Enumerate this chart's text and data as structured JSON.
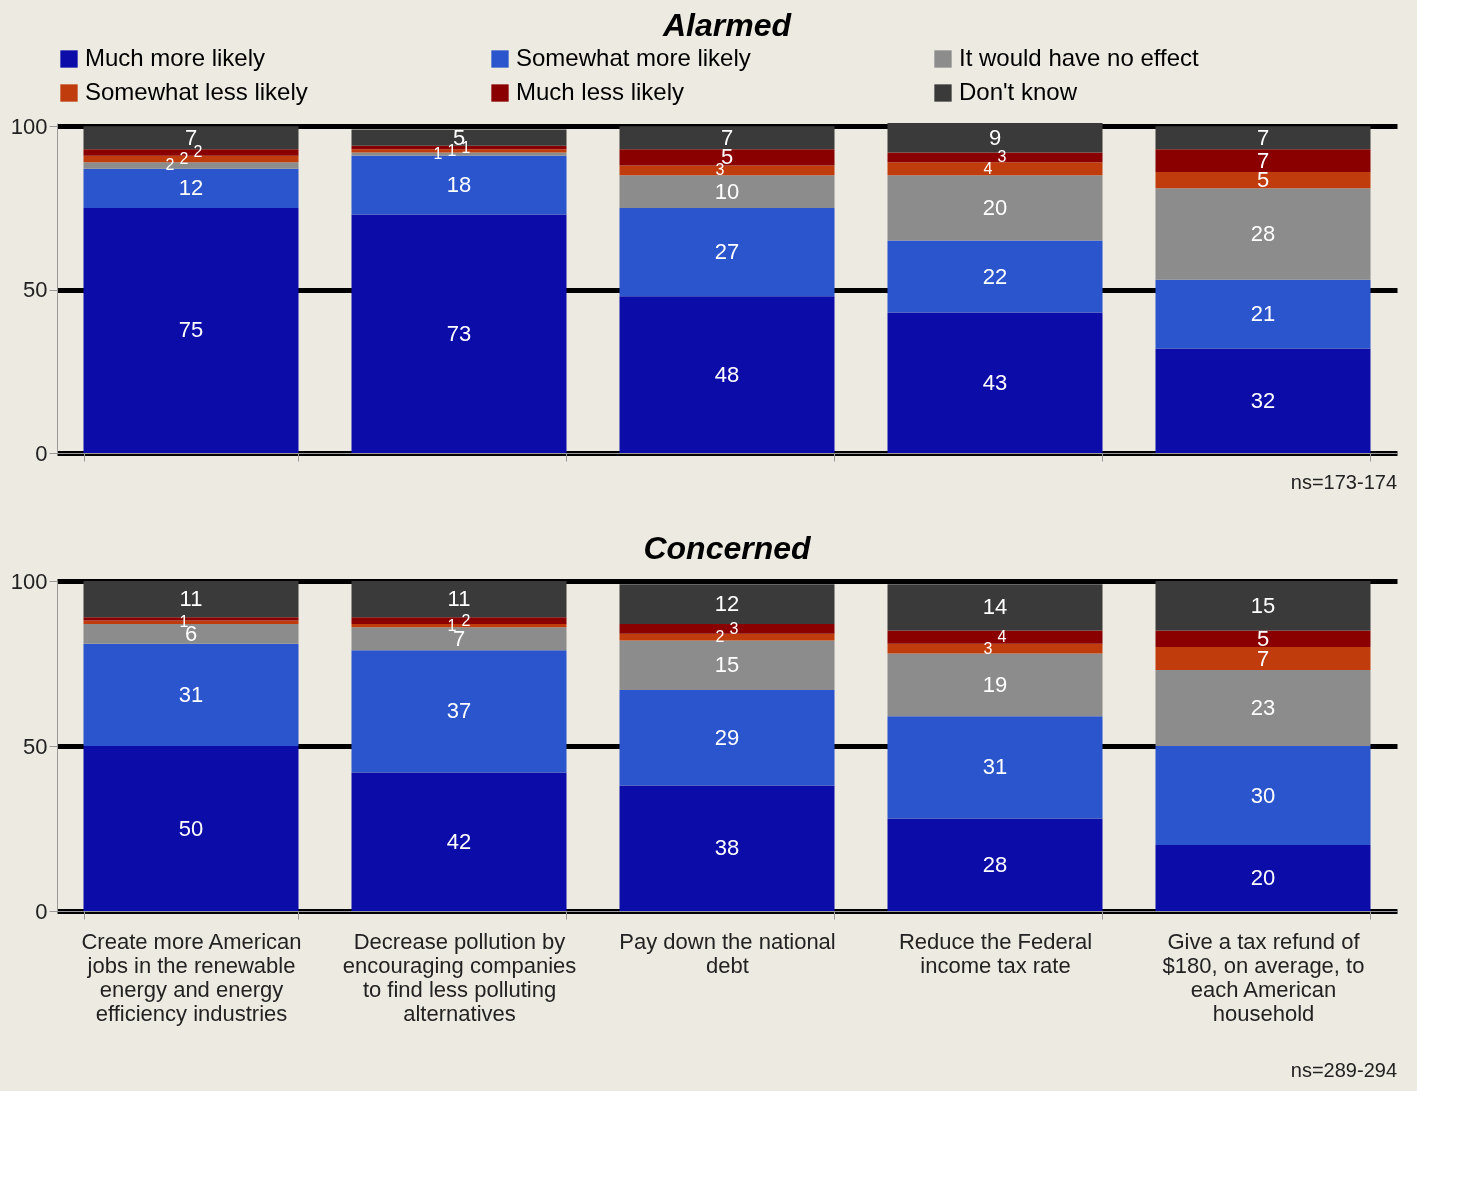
{
  "chart_data": [
    {
      "type": "bar",
      "title": "Alarmed",
      "stacked": true,
      "data_labels": true,
      "legend": "top",
      "grid": "y",
      "tick_labels": "y",
      "categories": [
        null,
        null,
        null,
        null,
        null
      ],
      "ylim": [
        0,
        101
      ],
      "yticks": [
        0,
        50,
        100
      ],
      "series": [
        {
          "name": "Much more likely",
          "color": "#0c0ca8",
          "values": [
            75,
            73,
            48,
            43,
            32
          ]
        },
        {
          "name": "Somewhat more likely",
          "color": "#2a55cc",
          "values": [
            12,
            18,
            27,
            22,
            21
          ]
        },
        {
          "name": "It would have no effect",
          "color": "#8c8c8c",
          "values": [
            2,
            1,
            10,
            20,
            28
          ]
        },
        {
          "name": "Somewhat less likely",
          "color": "#c03c0c",
          "values": [
            2,
            1,
            3,
            4,
            5
          ]
        },
        {
          "name": "Much less likely",
          "color": "#8a0000",
          "values": [
            2,
            1,
            5,
            3,
            7
          ]
        },
        {
          "name": "Don't know",
          "color": "#3a3a3a",
          "values": [
            7,
            5,
            7,
            9,
            7
          ]
        }
      ],
      "annotations": [
        "ns=173-174"
      ]
    },
    {
      "type": "bar",
      "title": "Concerned",
      "stacked": true,
      "data_labels": true,
      "legend": false,
      "grid": "y",
      "categories": [
        "Create more American jobs in the renewable energy and energy efficiency industries",
        "Decrease pollution by encouraging companies to find less polluting alternatives",
        "Pay down the national debt",
        "Reduce the Federal income tax rate",
        "Give a tax refund of $180, on average, to each American household"
      ],
      "ylim": [
        0,
        100
      ],
      "yticks": [
        0,
        50,
        100
      ],
      "series": [
        {
          "color": "#0c0ca8",
          "values": [
            50,
            42,
            38,
            28,
            20
          ]
        },
        {
          "color": "#2a55cc",
          "values": [
            31,
            37,
            29,
            31,
            30
          ]
        },
        {
          "color": "#8c8c8c",
          "values": [
            6,
            7,
            15,
            19,
            23
          ]
        },
        {
          "color": "#c03c0c",
          "values": [
            1,
            1,
            2,
            3,
            7
          ]
        },
        {
          "color": "#8a0000",
          "values": [
            1,
            2,
            3,
            4,
            5
          ],
          "value_labels": [
            null,
            "2",
            "3",
            "4",
            "5"
          ]
        },
        {
          "color": "#3a3a3a",
          "values": [
            11,
            11,
            12,
            14,
            15
          ]
        }
      ],
      "annotations": [
        "ns=289-294"
      ]
    }
  ]
}
